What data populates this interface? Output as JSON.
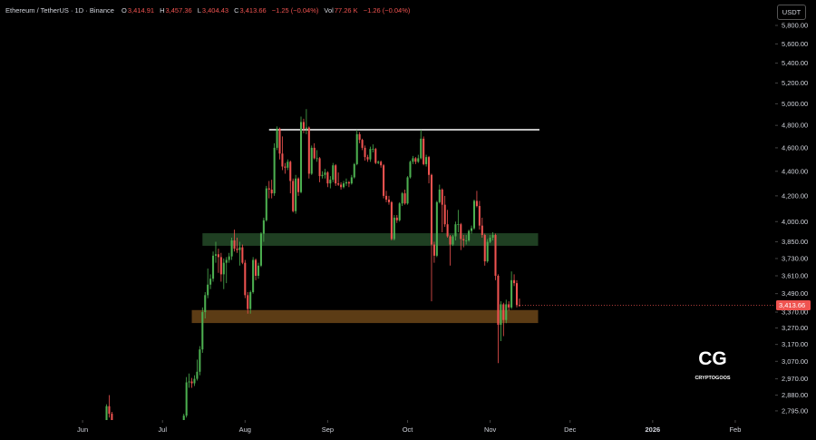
{
  "chart_data": {
    "type": "candlestick",
    "header": {
      "symbol": "Ethereum / TetherUS · 1D · Binance",
      "fields": [
        {
          "key": "O",
          "value": "3,414.91"
        },
        {
          "key": "H",
          "value": "3,457.36"
        },
        {
          "key": "L",
          "value": "3,404.43"
        },
        {
          "key": "C",
          "value": "3,413.66"
        }
      ],
      "change": "−1.25 (−0.04%)",
      "volume_key": "Vol",
      "volume": "77.26 K",
      "volume_change": "−1.26 (−0.04%)"
    },
    "currency": "USDT",
    "last_price_label": "3,413.66",
    "watermark": {
      "logo": "CG",
      "name": "CRYPTOGOOS"
    },
    "up_color": "#4caf50",
    "down_color": "#ef5350",
    "log_scale": true,
    "xlim": [
      -31,
      260
    ],
    "ylim": [
      2747,
      6086
    ],
    "xticks": [
      {
        "value": 0,
        "label": "Jun"
      },
      {
        "value": 30,
        "label": "Jul"
      },
      {
        "value": 61,
        "label": "Aug"
      },
      {
        "value": 92,
        "label": "Sep"
      },
      {
        "value": 122,
        "label": "Oct"
      },
      {
        "value": 153,
        "label": "Nov"
      },
      {
        "value": 183,
        "label": "Dec"
      },
      {
        "value": 214,
        "label": "2026"
      },
      {
        "value": 245,
        "label": "Feb"
      }
    ],
    "yticks": [
      {
        "value": 2795,
        "label": "2,795.00"
      },
      {
        "value": 2880,
        "label": "2,880.00"
      },
      {
        "value": 2970,
        "label": "2,970.00"
      },
      {
        "value": 3070,
        "label": "3,070.00"
      },
      {
        "value": 3170,
        "label": "3,170.00"
      },
      {
        "value": 3270,
        "label": "3,270.00"
      },
      {
        "value": 3370,
        "label": "3,370.00"
      },
      {
        "value": 3490,
        "label": "3,490.00"
      },
      {
        "value": 3610,
        "label": "3,610.00"
      },
      {
        "value": 3730,
        "label": "3,730.00"
      },
      {
        "value": 3850,
        "label": "3,850.00"
      },
      {
        "value": 4000,
        "label": "4,000.00"
      },
      {
        "value": 4200,
        "label": "4,200.00"
      },
      {
        "value": 4400,
        "label": "4,400.00"
      },
      {
        "value": 4600,
        "label": "4,600.00"
      },
      {
        "value": 4800,
        "label": "4,800.00"
      },
      {
        "value": 5000,
        "label": "5,000.00"
      },
      {
        "value": 5200,
        "label": "5,200.00"
      },
      {
        "value": 5400,
        "label": "5,400.00"
      },
      {
        "value": 5600,
        "label": "5,600.00"
      },
      {
        "value": 5800,
        "label": "5,800.00"
      }
    ],
    "zones": [
      {
        "y": [
          3821,
          3913
        ],
        "x": [
          45,
          171
        ],
        "color": "#1f3f22"
      },
      {
        "y": [
          3301,
          3383
        ],
        "x": [
          41,
          171
        ],
        "color": "#5c3c15"
      }
    ],
    "levels": [
      {
        "y": 4760,
        "x": [
          70,
          171.5
        ],
        "color": "#ffffff"
      }
    ],
    "x": [
      9,
      10,
      11,
      37,
      38,
      39,
      40,
      41,
      42,
      43,
      44,
      45,
      46,
      47,
      48,
      49,
      50,
      51,
      52,
      53,
      54,
      55,
      56,
      57,
      58,
      59,
      60,
      61,
      62,
      63,
      64,
      65,
      66,
      67,
      68,
      69,
      70,
      71,
      72,
      73,
      74,
      75,
      76,
      77,
      78,
      79,
      80,
      81,
      82,
      83,
      84,
      85,
      86,
      87,
      88,
      89,
      90,
      91,
      92,
      93,
      94,
      95,
      96,
      97,
      98,
      99,
      100,
      101,
      102,
      103,
      104,
      105,
      106,
      107,
      108,
      109,
      110,
      111,
      112,
      113,
      114,
      115,
      116,
      117,
      118,
      119,
      120,
      121,
      122,
      123,
      124,
      125,
      126,
      127,
      128,
      129,
      130,
      131,
      132,
      133,
      134,
      135,
      136,
      137,
      138,
      139,
      140,
      141,
      142,
      143,
      144,
      145,
      146,
      147,
      148,
      149,
      150,
      151,
      152,
      153,
      154,
      155,
      156,
      157,
      158,
      159,
      160,
      161,
      162,
      163,
      164
    ],
    "open": [
      2680,
      2820,
      2780,
      2570,
      2615,
      2770,
      2950,
      2955,
      2945,
      2970,
      3010,
      3140,
      3370,
      3480,
      3550,
      3590,
      3750,
      3760,
      3740,
      3620,
      3700,
      3720,
      3745,
      3860,
      3800,
      3790,
      3810,
      3700,
      3480,
      3390,
      3500,
      3720,
      3610,
      3680,
      3910,
      4010,
      4260,
      4250,
      4220,
      4600,
      4770,
      4550,
      4440,
      4430,
      4480,
      4320,
      4080,
      4340,
      4230,
      4830,
      4770,
      4780,
      4380,
      4600,
      4510,
      4510,
      4360,
      4370,
      4390,
      4300,
      4330,
      4450,
      4300,
      4290,
      4270,
      4300,
      4310,
      4300,
      4350,
      4460,
      4720,
      4670,
      4600,
      4520,
      4500,
      4590,
      4590,
      4470,
      4480,
      4450,
      4200,
      4170,
      4150,
      3870,
      4030,
      4010,
      4140,
      4220,
      4140,
      4350,
      4480,
      4510,
      4480,
      4510,
      4680,
      4460,
      4520,
      4370,
      3830,
      3750,
      4150,
      4250,
      4130,
      3980,
      3890,
      3830,
      3890,
      3980,
      3980,
      3870,
      3860,
      3860,
      3930,
      3950,
      4160,
      4120,
      3970,
      3900,
      3710,
      3850,
      3880,
      3900,
      3610,
      3290,
      3420,
      3320,
      3420,
      3400,
      3580,
      3560,
      3414.91
    ],
    "high": [
      2830,
      2880,
      2790,
      2630,
      2780,
      2980,
      3000,
      2975,
      2990,
      3080,
      3160,
      3400,
      3500,
      3660,
      3620,
      3780,
      3850,
      3800,
      3770,
      3730,
      3740,
      3770,
      3880,
      3940,
      3880,
      3850,
      3830,
      3720,
      3500,
      3510,
      3740,
      3730,
      3700,
      3920,
      4030,
      4280,
      4320,
      4330,
      4640,
      4790,
      4780,
      4700,
      4470,
      4500,
      4490,
      4340,
      4370,
      4350,
      4880,
      4860,
      4950,
      4790,
      4620,
      4640,
      4580,
      4520,
      4400,
      4420,
      4400,
      4360,
      4470,
      4460,
      4390,
      4310,
      4320,
      4340,
      4320,
      4370,
      4470,
      4760,
      4740,
      4680,
      4620,
      4540,
      4610,
      4630,
      4600,
      4490,
      4490,
      4460,
      4240,
      4200,
      4160,
      4050,
      4050,
      4150,
      4230,
      4250,
      4360,
      4490,
      4530,
      4520,
      4540,
      4760,
      4700,
      4540,
      4530,
      4380,
      3850,
      4160,
      4290,
      4260,
      4200,
      4090,
      3900,
      3900,
      4000,
      4090,
      3990,
      3900,
      3900,
      3940,
      3970,
      4170,
      4240,
      4160,
      4030,
      3910,
      3870,
      3900,
      3920,
      3910,
      3620,
      3440,
      3430,
      3450,
      3440,
      3640,
      3620,
      3580,
      3457.36
    ],
    "low": [
      2660,
      2760,
      2640,
      2540,
      2600,
      2760,
      2920,
      2920,
      2930,
      2960,
      2990,
      3120,
      3330,
      3460,
      3520,
      3570,
      3700,
      3630,
      3570,
      3520,
      3560,
      3700,
      3720,
      3780,
      3770,
      3680,
      3690,
      3460,
      3360,
      3360,
      3490,
      3580,
      3590,
      3670,
      3850,
      4000,
      4180,
      4180,
      4200,
      4580,
      4500,
      4410,
      4380,
      4410,
      4220,
      4070,
      4060,
      4200,
      4220,
      4730,
      4720,
      4340,
      4370,
      4500,
      4480,
      4310,
      4340,
      4340,
      4270,
      4260,
      4310,
      4280,
      4280,
      4250,
      4260,
      4280,
      4270,
      4290,
      4340,
      4450,
      4640,
      4580,
      4490,
      4480,
      4480,
      4560,
      4460,
      4460,
      4430,
      4180,
      4150,
      4130,
      3860,
      3860,
      3990,
      4000,
      4120,
      4130,
      4130,
      4340,
      4460,
      4460,
      4470,
      4500,
      4450,
      4440,
      4300,
      3440,
      3700,
      3740,
      4140,
      3920,
      3960,
      3880,
      3680,
      3820,
      3860,
      3920,
      3790,
      3810,
      3830,
      3850,
      3910,
      3940,
      4110,
      3940,
      3880,
      3680,
      3700,
      3840,
      3860,
      3580,
      3060,
      3190,
      3220,
      3300,
      3380,
      3390,
      3540,
      3400,
      3404.43
    ],
    "close": [
      2820,
      2780,
      2650,
      2615,
      2770,
      2950,
      2955,
      2945,
      2970,
      3010,
      3140,
      3370,
      3480,
      3550,
      3590,
      3750,
      3760,
      3740,
      3620,
      3700,
      3720,
      3745,
      3860,
      3800,
      3790,
      3810,
      3700,
      3480,
      3390,
      3500,
      3720,
      3610,
      3680,
      3910,
      4010,
      4260,
      4250,
      4220,
      4600,
      4770,
      4550,
      4440,
      4430,
      4480,
      4320,
      4080,
      4340,
      4230,
      4830,
      4770,
      4780,
      4380,
      4600,
      4510,
      4510,
      4360,
      4370,
      4390,
      4300,
      4330,
      4450,
      4300,
      4290,
      4270,
      4300,
      4310,
      4300,
      4350,
      4460,
      4720,
      4670,
      4600,
      4520,
      4500,
      4590,
      4590,
      4470,
      4480,
      4450,
      4200,
      4170,
      4150,
      3870,
      4030,
      4010,
      4140,
      4220,
      4140,
      4350,
      4480,
      4510,
      4480,
      4510,
      4680,
      4460,
      4520,
      4370,
      3830,
      3750,
      4150,
      4250,
      4130,
      3980,
      3890,
      3830,
      3890,
      3980,
      3980,
      3870,
      3860,
      3860,
      3930,
      3950,
      4160,
      4120,
      3970,
      3900,
      3710,
      3850,
      3880,
      3900,
      3610,
      3290,
      3420,
      3320,
      3420,
      3400,
      3580,
      3560,
      3414.91,
      3413.66
    ]
  }
}
